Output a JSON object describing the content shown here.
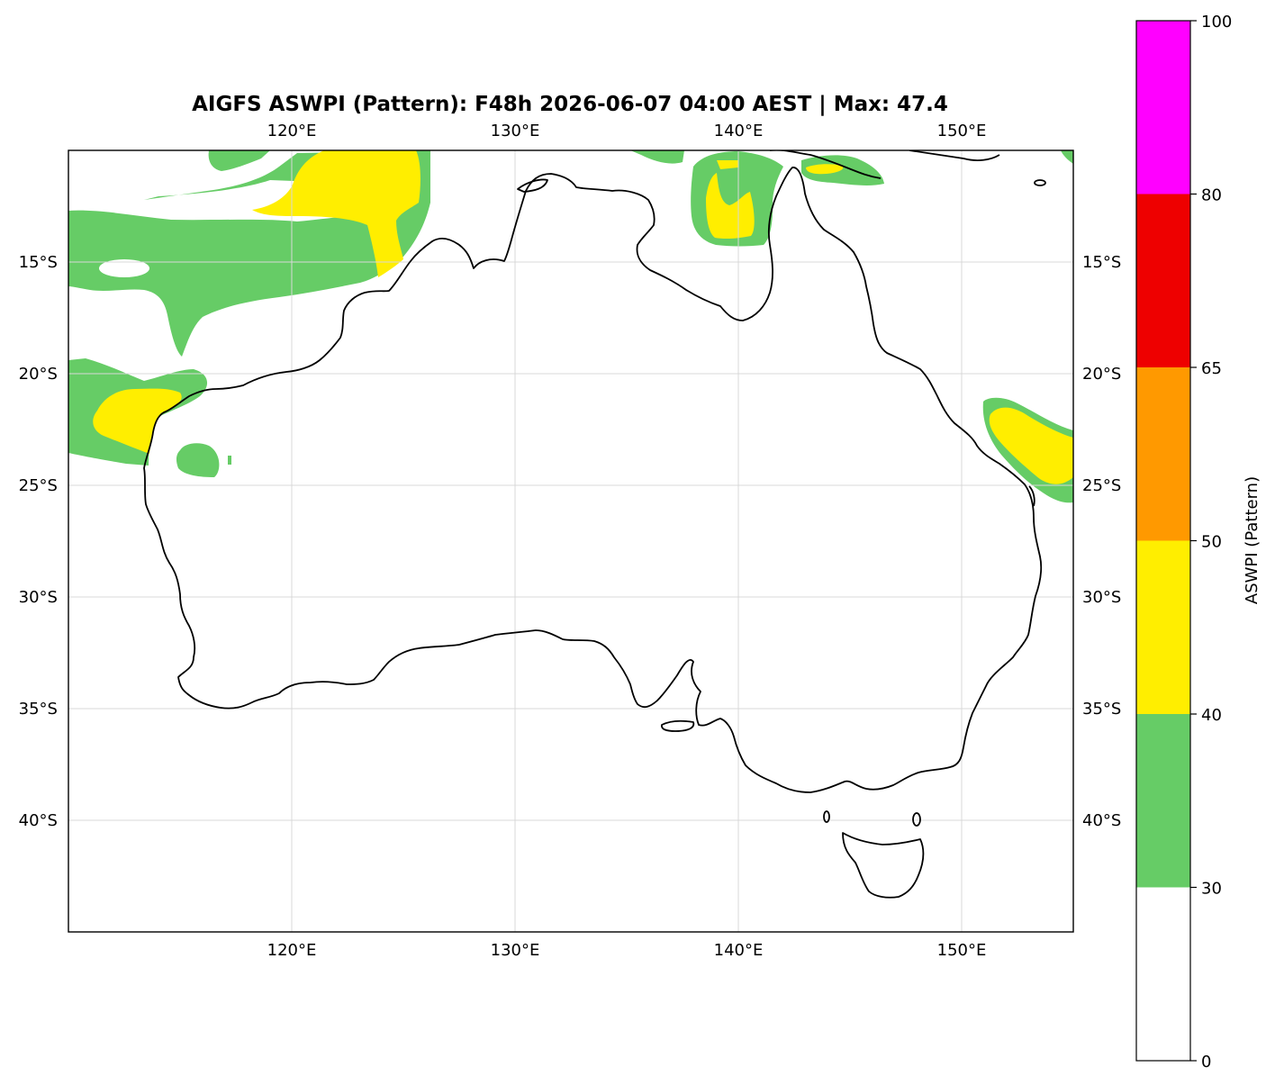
{
  "title": "AIGFS ASWPI (Pattern): F48h 2026-06-07 04:00 AEST | Max: 47.4",
  "map": {
    "extent": {
      "lon": [
        110,
        155
      ],
      "lat": [
        -45,
        -10
      ]
    },
    "lon_ticks": [
      {
        "value": 120,
        "label": "120°E"
      },
      {
        "value": 130,
        "label": "130°E"
      },
      {
        "value": 140,
        "label": "140°E"
      },
      {
        "value": 150,
        "label": "150°E"
      }
    ],
    "lat_ticks": [
      {
        "value": -15,
        "label": "15°S"
      },
      {
        "value": -20,
        "label": "20°S"
      },
      {
        "value": -25,
        "label": "25°S"
      },
      {
        "value": -30,
        "label": "30°S"
      },
      {
        "value": -35,
        "label": "35°S"
      },
      {
        "value": -40,
        "label": "40°S"
      }
    ],
    "colors": {
      "green": "#66cc66",
      "yellow": "#ffee00",
      "coastline": "#000000",
      "gridline": "#d8d8d8"
    }
  },
  "colorbar": {
    "label": "ASWPI (Pattern)",
    "ticks": [
      {
        "value": 0,
        "label": "0"
      },
      {
        "value": 30,
        "label": "30"
      },
      {
        "value": 40,
        "label": "40"
      },
      {
        "value": 50,
        "label": "50"
      },
      {
        "value": 65,
        "label": "65"
      },
      {
        "value": 80,
        "label": "80"
      },
      {
        "value": 100,
        "label": "100"
      }
    ],
    "segments": [
      {
        "from": 0,
        "to": 30,
        "color": "#ffffff"
      },
      {
        "from": 30,
        "to": 40,
        "color": "#66cc66"
      },
      {
        "from": 40,
        "to": 50,
        "color": "#ffee00"
      },
      {
        "from": 50,
        "to": 65,
        "color": "#ff9900"
      },
      {
        "from": 65,
        "to": 80,
        "color": "#ee0000"
      },
      {
        "from": 80,
        "to": 100,
        "color": "#ff00ff"
      }
    ]
  }
}
